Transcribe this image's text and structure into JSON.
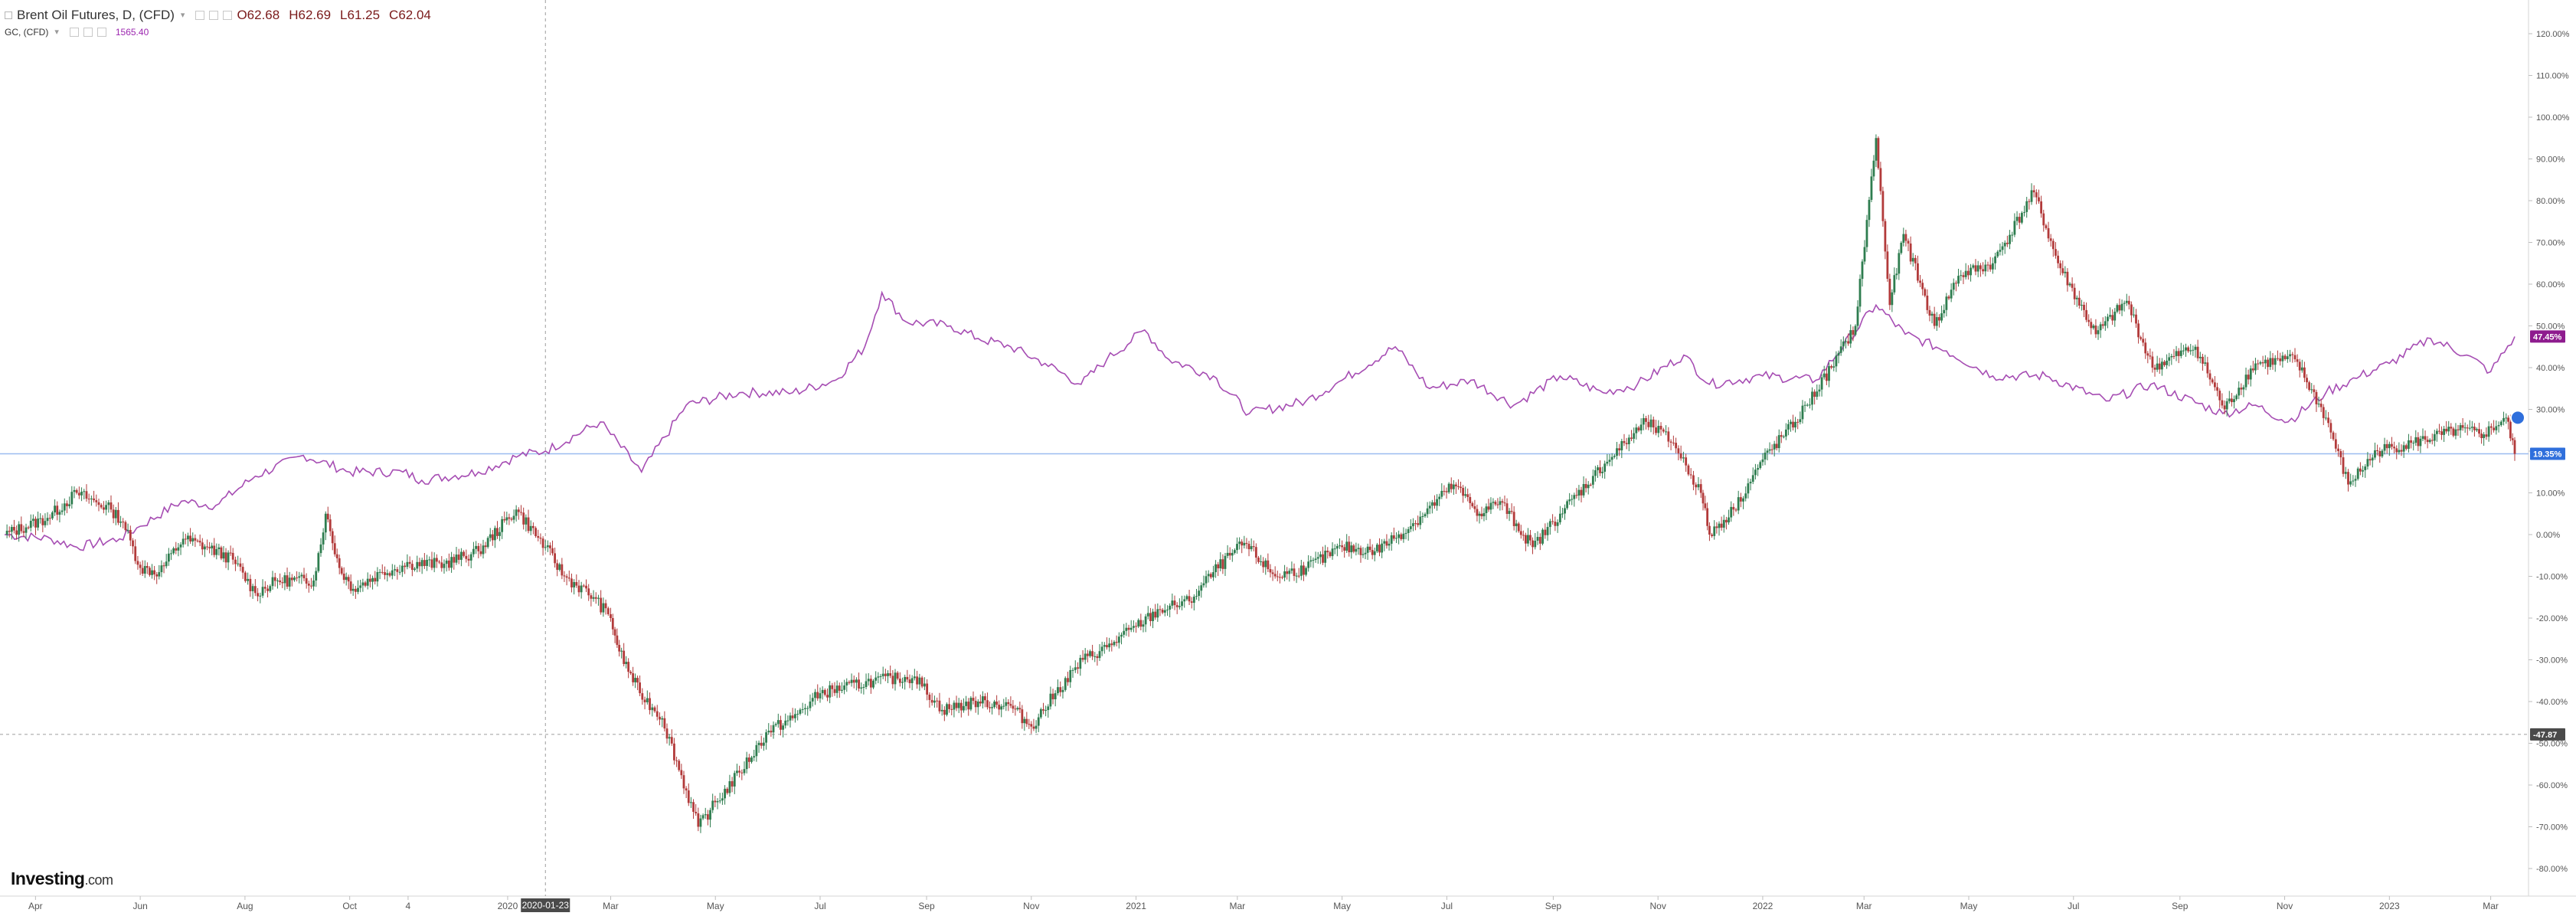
{
  "legend": {
    "main_symbol": "Brent Oil Futures, D, (CFD)",
    "open": "O62.68",
    "high": "H62.69",
    "low": "L61.25",
    "close": "C62.04",
    "compare_symbol": "GC, (CFD)",
    "compare_value": "1565.40"
  },
  "logo": {
    "brand": "Investing",
    "suffix": ".com"
  },
  "crosshair": {
    "date_label": "2020-01-23",
    "value_label": "-47.87",
    "value": -47.87
  },
  "price_labels": {
    "gold_last": "47.45%",
    "gold_last_value": 47.45,
    "brent_last": "19.35%",
    "brent_last_value": 19.35
  },
  "colors": {
    "up_candle": "#2e7d4f",
    "down_candle": "#b23a3a",
    "compare_line": "#a64db3",
    "gold_tag": "#8e1b8e",
    "brent_tag": "#2f6fdc",
    "horizontal_line": "#9bbcf0",
    "crosshair": "#9e9e9e",
    "axis_text": "#555555"
  },
  "chart_data": {
    "type": "line",
    "title": "Brent Oil Futures, D, (CFD)",
    "y_unit": "percent change from start",
    "y_axis_position": "right",
    "ylim": [
      -80,
      120
    ],
    "y_ticks": [
      "120.00%",
      "110.00%",
      "100.00%",
      "90.00%",
      "80.00%",
      "70.00%",
      "60.00%",
      "50.00%",
      "40.00%",
      "30.00%",
      "20.00%",
      "10.00%",
      "0.00%",
      "-10.00%",
      "-20.00%",
      "-30.00%",
      "-40.00%",
      "-50.00%",
      "-60.00%",
      "-70.00%",
      "-80.00%"
    ],
    "x_range": [
      "2019-03-14",
      "2023-03-15"
    ],
    "x_ticks": [
      {
        "label": "Apr",
        "date": "2019-04-01"
      },
      {
        "label": "Jun",
        "date": "2019-06-01"
      },
      {
        "label": "Aug",
        "date": "2019-08-01"
      },
      {
        "label": "Oct",
        "date": "2019-10-01"
      },
      {
        "label": "4",
        "date": "2019-11-04"
      },
      {
        "label": "2020",
        "date": "2020-01-01"
      },
      {
        "label": "Mar",
        "date": "2020-03-01"
      },
      {
        "label": "May",
        "date": "2020-05-01"
      },
      {
        "label": "Jul",
        "date": "2020-07-01"
      },
      {
        "label": "Sep",
        "date": "2020-09-01"
      },
      {
        "label": "Nov",
        "date": "2020-11-01"
      },
      {
        "label": "2021",
        "date": "2021-01-01"
      },
      {
        "label": "Mar",
        "date": "2021-03-01"
      },
      {
        "label": "May",
        "date": "2021-05-01"
      },
      {
        "label": "Jul",
        "date": "2021-07-01"
      },
      {
        "label": "Sep",
        "date": "2021-09-01"
      },
      {
        "label": "Nov",
        "date": "2021-11-01"
      },
      {
        "label": "2022",
        "date": "2022-01-01"
      },
      {
        "label": "Mar",
        "date": "2022-03-01"
      },
      {
        "label": "May",
        "date": "2022-05-01"
      },
      {
        "label": "Jul",
        "date": "2022-07-01"
      },
      {
        "label": "Sep",
        "date": "2022-09-01"
      },
      {
        "label": "Nov",
        "date": "2022-11-01"
      },
      {
        "label": "2023",
        "date": "2023-01-01"
      },
      {
        "label": "Mar",
        "date": "2023-03-01"
      }
    ],
    "grid": false,
    "legend_position": "top-left",
    "series": [
      {
        "name": "Brent Oil Futures, D, (CFD)",
        "style": "candlestick",
        "points": [
          [
            "2019-03-14",
            0
          ],
          [
            "2019-04-08",
            4
          ],
          [
            "2019-04-25",
            10
          ],
          [
            "2019-05-15",
            6
          ],
          [
            "2019-05-22",
            3
          ],
          [
            "2019-06-01",
            -8
          ],
          [
            "2019-06-12",
            -9
          ],
          [
            "2019-06-26",
            -1
          ],
          [
            "2019-07-10",
            -3
          ],
          [
            "2019-07-25",
            -6
          ],
          [
            "2019-08-07",
            -14
          ],
          [
            "2019-08-20",
            -11
          ],
          [
            "2019-09-10",
            -11
          ],
          [
            "2019-09-17",
            5
          ],
          [
            "2019-09-25",
            -8
          ],
          [
            "2019-10-03",
            -13
          ],
          [
            "2019-10-20",
            -9
          ],
          [
            "2019-11-05",
            -7
          ],
          [
            "2019-11-25",
            -7
          ],
          [
            "2019-12-15",
            -4
          ],
          [
            "2020-01-06",
            6
          ],
          [
            "2020-01-23",
            -3
          ],
          [
            "2020-02-03",
            -10
          ],
          [
            "2020-02-20",
            -15
          ],
          [
            "2020-03-01",
            -20
          ],
          [
            "2020-03-06",
            -28
          ],
          [
            "2020-03-18",
            -38
          ],
          [
            "2020-03-31",
            -44
          ],
          [
            "2020-04-21",
            -70
          ],
          [
            "2020-04-28",
            -66
          ],
          [
            "2020-05-15",
            -57
          ],
          [
            "2020-06-01",
            -47
          ],
          [
            "2020-06-15",
            -44
          ],
          [
            "2020-07-01",
            -38
          ],
          [
            "2020-08-01",
            -35
          ],
          [
            "2020-08-25",
            -34
          ],
          [
            "2020-09-10",
            -42
          ],
          [
            "2020-10-01",
            -40
          ],
          [
            "2020-10-20",
            -41
          ],
          [
            "2020-11-01",
            -46
          ],
          [
            "2020-11-15",
            -38
          ],
          [
            "2020-12-01",
            -30
          ],
          [
            "2020-12-15",
            -27
          ],
          [
            "2021-01-01",
            -22
          ],
          [
            "2021-01-15",
            -18
          ],
          [
            "2021-02-01",
            -16
          ],
          [
            "2021-02-15",
            -9
          ],
          [
            "2021-03-05",
            -2
          ],
          [
            "2021-03-23",
            -10
          ],
          [
            "2021-04-10",
            -8
          ],
          [
            "2021-05-01",
            -3
          ],
          [
            "2021-05-20",
            -4
          ],
          [
            "2021-06-10",
            2
          ],
          [
            "2021-07-05",
            12
          ],
          [
            "2021-07-20",
            5
          ],
          [
            "2021-08-01",
            8
          ],
          [
            "2021-08-20",
            -3
          ],
          [
            "2021-09-05",
            5
          ],
          [
            "2021-10-01",
            17
          ],
          [
            "2021-10-25",
            27
          ],
          [
            "2021-11-10",
            22
          ],
          [
            "2021-11-26",
            10
          ],
          [
            "2021-12-01",
            0
          ],
          [
            "2021-12-15",
            6
          ],
          [
            "2022-01-01",
            18
          ],
          [
            "2022-01-20",
            27
          ],
          [
            "2022-02-10",
            40
          ],
          [
            "2022-02-24",
            50
          ],
          [
            "2022-03-08",
            95
          ],
          [
            "2022-03-16",
            55
          ],
          [
            "2022-03-24",
            72
          ],
          [
            "2022-04-11",
            50
          ],
          [
            "2022-04-25",
            62
          ],
          [
            "2022-05-15",
            65
          ],
          [
            "2022-06-08",
            82
          ],
          [
            "2022-06-22",
            65
          ],
          [
            "2022-07-14",
            48
          ],
          [
            "2022-08-01",
            56
          ],
          [
            "2022-08-16",
            40
          ],
          [
            "2022-09-10",
            45
          ],
          [
            "2022-09-27",
            30
          ],
          [
            "2022-10-15",
            41
          ],
          [
            "2022-11-07",
            42
          ],
          [
            "2022-11-25",
            28
          ],
          [
            "2022-12-08",
            12
          ],
          [
            "2022-12-25",
            20
          ],
          [
            "2023-01-15",
            22
          ],
          [
            "2023-02-10",
            25
          ],
          [
            "2023-02-25",
            24
          ],
          [
            "2023-03-10",
            28
          ],
          [
            "2023-03-15",
            19.35
          ]
        ]
      },
      {
        "name": "GC, (CFD)",
        "style": "line",
        "points": [
          [
            "2019-03-14",
            0
          ],
          [
            "2019-04-10",
            -1
          ],
          [
            "2019-04-25",
            -3
          ],
          [
            "2019-05-20",
            -1
          ],
          [
            "2019-06-01",
            2
          ],
          [
            "2019-06-25",
            8
          ],
          [
            "2019-07-15",
            7
          ],
          [
            "2019-08-07",
            14
          ],
          [
            "2019-09-04",
            19
          ],
          [
            "2019-10-01",
            15
          ],
          [
            "2019-11-01",
            15
          ],
          [
            "2019-11-12",
            13
          ],
          [
            "2019-12-15",
            15
          ],
          [
            "2020-01-08",
            19
          ],
          [
            "2020-01-23",
            20
          ],
          [
            "2020-02-24",
            27
          ],
          [
            "2020-03-19",
            15
          ],
          [
            "2020-04-14",
            31
          ],
          [
            "2020-05-15",
            34
          ],
          [
            "2020-06-15",
            34
          ],
          [
            "2020-07-10",
            37
          ],
          [
            "2020-07-27",
            45
          ],
          [
            "2020-08-06",
            58
          ],
          [
            "2020-08-20",
            51
          ],
          [
            "2020-09-15",
            50
          ],
          [
            "2020-10-01",
            47
          ],
          [
            "2020-10-20",
            45
          ],
          [
            "2020-11-09",
            41
          ],
          [
            "2020-11-30",
            36
          ],
          [
            "2020-12-15",
            42
          ],
          [
            "2021-01-06",
            49
          ],
          [
            "2021-01-20",
            42
          ],
          [
            "2021-02-15",
            38
          ],
          [
            "2021-03-08",
            29
          ],
          [
            "2021-04-10",
            32
          ],
          [
            "2021-05-01",
            37
          ],
          [
            "2021-06-01",
            45
          ],
          [
            "2021-06-21",
            35
          ],
          [
            "2021-07-15",
            37
          ],
          [
            "2021-08-09",
            31
          ],
          [
            "2021-09-05",
            38
          ],
          [
            "2021-09-30",
            34
          ],
          [
            "2021-10-20",
            36
          ],
          [
            "2021-11-16",
            43
          ],
          [
            "2021-12-01",
            36
          ],
          [
            "2022-01-01",
            38
          ],
          [
            "2022-02-01",
            37
          ],
          [
            "2022-03-08",
            55
          ],
          [
            "2022-03-25",
            48
          ],
          [
            "2022-04-18",
            44
          ],
          [
            "2022-05-15",
            38
          ],
          [
            "2022-06-15",
            38
          ],
          [
            "2022-07-20",
            32
          ],
          [
            "2022-08-15",
            36
          ],
          [
            "2022-09-26",
            29
          ],
          [
            "2022-10-15",
            31
          ],
          [
            "2022-11-03",
            27
          ],
          [
            "2022-11-25",
            34
          ],
          [
            "2022-12-15",
            38
          ],
          [
            "2023-01-01",
            41
          ],
          [
            "2023-01-25",
            47
          ],
          [
            "2023-02-15",
            43
          ],
          [
            "2023-03-01",
            39
          ],
          [
            "2023-03-15",
            47.45
          ]
        ]
      }
    ]
  }
}
